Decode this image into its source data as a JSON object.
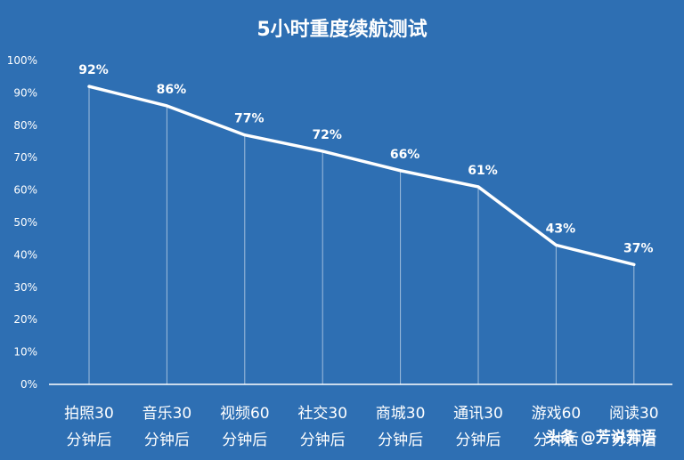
{
  "chart_data": {
    "type": "line",
    "title": "5小时重度续航测试",
    "categories": [
      [
        "拍照30",
        "分钟后"
      ],
      [
        "音乐30",
        "分钟后"
      ],
      [
        "视频60",
        "分钟后"
      ],
      [
        "社交30",
        "分钟后"
      ],
      [
        "商城30",
        "分钟后"
      ],
      [
        "通讯30",
        "分钟后"
      ],
      [
        "游戏60",
        "分钟后"
      ],
      [
        "阅读30",
        "分钟后"
      ]
    ],
    "values": [
      92,
      86,
      77,
      72,
      66,
      61,
      43,
      37
    ],
    "data_labels": [
      "92%",
      "86%",
      "77%",
      "72%",
      "66%",
      "61%",
      "43%",
      "37%"
    ],
    "yticks": [
      "0%",
      "10%",
      "20%",
      "30%",
      "40%",
      "50%",
      "60%",
      "70%",
      "80%",
      "90%",
      "100%"
    ],
    "ylim": [
      0,
      100
    ],
    "grid": false,
    "drop_lines": true,
    "colors": {
      "background": "#2e6fb3",
      "line": "#ffffff",
      "text": "#ffffff"
    }
  },
  "watermark": "头条 @芳说芳语"
}
